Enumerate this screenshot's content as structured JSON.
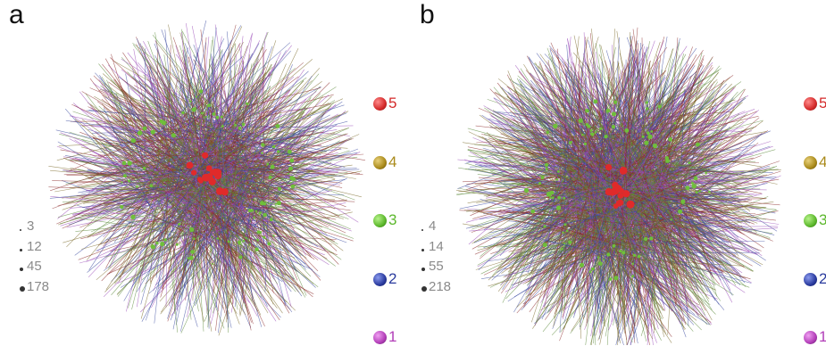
{
  "panels": [
    {
      "letter": "a",
      "size_legend": [
        "3",
        "12",
        "45",
        "178"
      ],
      "levels": [
        {
          "label": "5",
          "color": "#d42a2a"
        },
        {
          "label": "4",
          "color": "#a98a1a"
        },
        {
          "label": "3",
          "color": "#5cb82c"
        },
        {
          "label": "2",
          "color": "#2a3b9e"
        },
        {
          "label": "1",
          "color": "#b23eb8"
        }
      ]
    },
    {
      "letter": "b",
      "size_legend": [
        "4",
        "14",
        "55",
        "218"
      ],
      "levels": [
        {
          "label": "5",
          "color": "#d42a2a"
        },
        {
          "label": "4",
          "color": "#a98a1a"
        },
        {
          "label": "3",
          "color": "#5cb82c"
        },
        {
          "label": "2",
          "color": "#2a3b9e"
        },
        {
          "label": "1",
          "color": "#b23eb8"
        }
      ]
    }
  ],
  "edge_colors": [
    "#8b2b2b",
    "#7a6a2a",
    "#5b8a3a",
    "#3a4aa0",
    "#9a4ab8"
  ]
}
